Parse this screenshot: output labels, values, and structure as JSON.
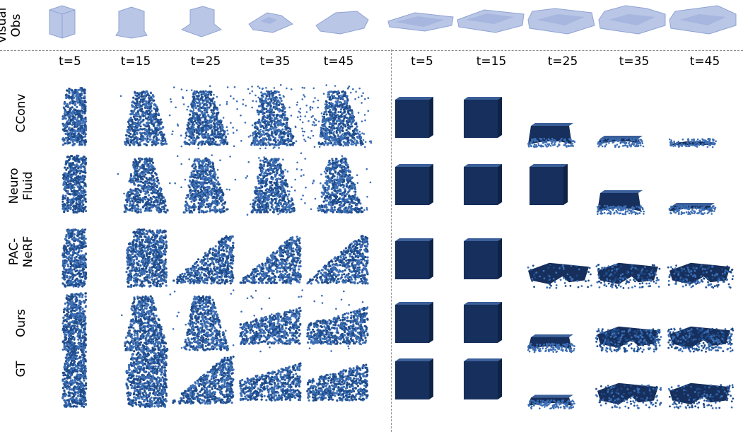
{
  "header": {
    "visual_obs_line1": "Visual",
    "visual_obs_line2": "Obs"
  },
  "timesteps_left": [
    "t=5",
    "t=15",
    "t=25",
    "t=35",
    "t=45"
  ],
  "timesteps_right": [
    "t=5",
    "t=15",
    "t=25",
    "t=35",
    "t=45"
  ],
  "rows": [
    {
      "line1": "CConv",
      "line2": ""
    },
    {
      "line1": "Neuro",
      "line2": "Fluid"
    },
    {
      "line1": "PAC-",
      "line2": "NeRF"
    },
    {
      "line1": "Ours",
      "line2": ""
    },
    {
      "line1": "GT",
      "line2": ""
    }
  ],
  "colors": {
    "particle": "#1e4b8a",
    "particle_light": "#3d6fb5",
    "obs_fill": "#b9c6e6",
    "obs_edge": "#8fa3d4",
    "cube": "#162f5c"
  }
}
